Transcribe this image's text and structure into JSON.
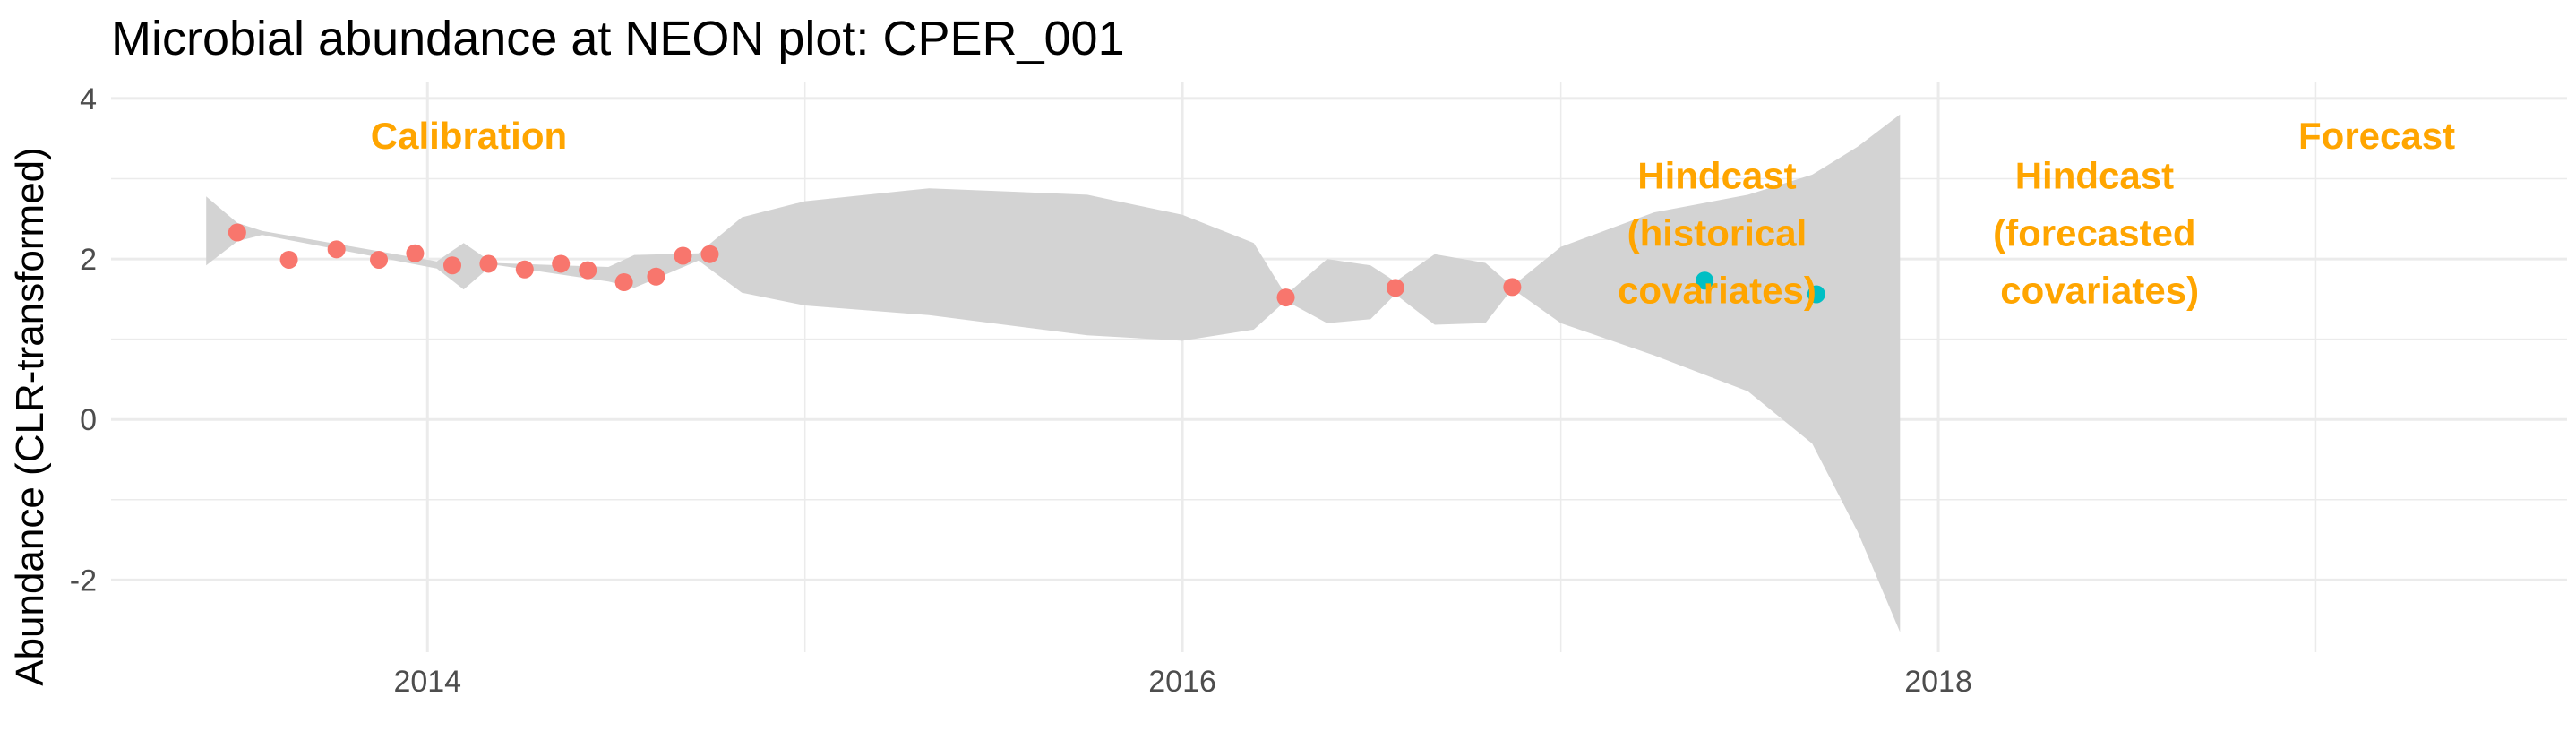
{
  "chart_data": {
    "type": "scatter",
    "title": "Microbial abundance at NEON plot: CPER_001",
    "xlabel": "",
    "ylabel": "Abundance (CLR-transformed)",
    "x_type": "date",
    "xlim": [
      "2013-03-01",
      "2019-09-01"
    ],
    "ylim": [
      -2.9,
      4.2
    ],
    "x_ticks": [
      {
        "date": "2014-01-01",
        "label": "2014"
      },
      {
        "date": "2016-01-01",
        "label": "2016"
      },
      {
        "date": "2018-01-01",
        "label": "2018"
      }
    ],
    "y_ticks": [
      {
        "value": -2,
        "label": "-2"
      },
      {
        "value": 0,
        "label": "0"
      },
      {
        "value": 2,
        "label": "2"
      },
      {
        "value": 4,
        "label": "4"
      }
    ],
    "grid": true,
    "series": [
      {
        "color": "#F8766D",
        "points": [
          {
            "x": "2013-07-01",
            "y": 2.33
          },
          {
            "x": "2013-08-20",
            "y": 1.99
          },
          {
            "x": "2013-10-05",
            "y": 2.12
          },
          {
            "x": "2013-11-15",
            "y": 1.99
          },
          {
            "x": "2013-12-20",
            "y": 2.07
          },
          {
            "x": "2014-01-25",
            "y": 1.92
          },
          {
            "x": "2014-03-01",
            "y": 1.94
          },
          {
            "x": "2014-04-05",
            "y": 1.87
          },
          {
            "x": "2014-05-10",
            "y": 1.94
          },
          {
            "x": "2014-06-05",
            "y": 1.86
          },
          {
            "x": "2014-07-10",
            "y": 1.71
          },
          {
            "x": "2014-08-10",
            "y": 1.78
          },
          {
            "x": "2014-09-05",
            "y": 2.04
          },
          {
            "x": "2014-10-01",
            "y": 2.06
          },
          {
            "x": "2016-04-10",
            "y": 1.52
          },
          {
            "x": "2016-07-25",
            "y": 1.64
          },
          {
            "x": "2016-11-15",
            "y": 1.65
          }
        ]
      },
      {
        "color": "#00BFC4",
        "points": [
          {
            "x": "2017-05-20",
            "y": 1.73
          },
          {
            "x": "2017-09-05",
            "y": 1.56
          }
        ]
      }
    ],
    "ribbon": {
      "color": "#D3D3D3",
      "points": [
        {
          "x": "2013-06-01",
          "upper": 2.78,
          "lower": 1.92
        },
        {
          "x": "2013-07-01",
          "upper": 2.45,
          "lower": 2.22
        },
        {
          "x": "2013-07-25",
          "upper": 2.35,
          "lower": 2.3
        },
        {
          "x": "2014-01-10",
          "upper": 1.97,
          "lower": 1.88
        },
        {
          "x": "2014-02-05",
          "upper": 2.2,
          "lower": 1.62
        },
        {
          "x": "2014-03-05",
          "upper": 1.95,
          "lower": 1.93
        },
        {
          "x": "2014-06-25",
          "upper": 1.9,
          "lower": 1.72
        },
        {
          "x": "2014-07-20",
          "upper": 2.05,
          "lower": 1.64
        },
        {
          "x": "2014-09-20",
          "upper": 2.07,
          "lower": 1.98
        },
        {
          "x": "2014-11-01",
          "upper": 2.52,
          "lower": 1.58
        },
        {
          "x": "2015-01-01",
          "upper": 2.72,
          "lower": 1.42
        },
        {
          "x": "2015-05-01",
          "upper": 2.88,
          "lower": 1.3
        },
        {
          "x": "2015-10-01",
          "upper": 2.8,
          "lower": 1.05
        },
        {
          "x": "2016-01-01",
          "upper": 2.55,
          "lower": 0.98
        },
        {
          "x": "2016-03-10",
          "upper": 2.2,
          "lower": 1.12
        },
        {
          "x": "2016-04-10",
          "upper": 1.55,
          "lower": 1.48
        },
        {
          "x": "2016-05-20",
          "upper": 2.0,
          "lower": 1.2
        },
        {
          "x": "2016-07-01",
          "upper": 1.92,
          "lower": 1.25
        },
        {
          "x": "2016-07-25",
          "upper": 1.72,
          "lower": 1.56
        },
        {
          "x": "2016-09-01",
          "upper": 2.06,
          "lower": 1.18
        },
        {
          "x": "2016-10-20",
          "upper": 1.95,
          "lower": 1.2
        },
        {
          "x": "2016-11-15",
          "upper": 1.66,
          "lower": 1.63
        },
        {
          "x": "2017-01-01",
          "upper": 2.15,
          "lower": 1.2
        },
        {
          "x": "2017-04-01",
          "upper": 2.58,
          "lower": 0.8
        },
        {
          "x": "2017-07-01",
          "upper": 2.8,
          "lower": 0.35
        },
        {
          "x": "2017-09-01",
          "upper": 3.05,
          "lower": -0.3
        },
        {
          "x": "2017-10-15",
          "upper": 3.4,
          "lower": -1.4
        },
        {
          "x": "2017-11-25",
          "upper": 3.8,
          "lower": -2.65
        }
      ]
    },
    "annotations": [
      {
        "lines": [
          "Calibration"
        ],
        "x": "2014-02-10",
        "y": 3.53
      },
      {
        "lines": [
          "Hindcast",
          "(historical",
          "covariates)"
        ],
        "x": "2017-06-01",
        "y": 2.32
      },
      {
        "lines": [
          "Hindcast",
          "(forecasted",
          " covariates)"
        ],
        "x": "2018-06-01",
        "y": 2.32
      },
      {
        "lines": [
          "Forecast"
        ],
        "x": "2019-03-01",
        "y": 3.53
      }
    ]
  }
}
